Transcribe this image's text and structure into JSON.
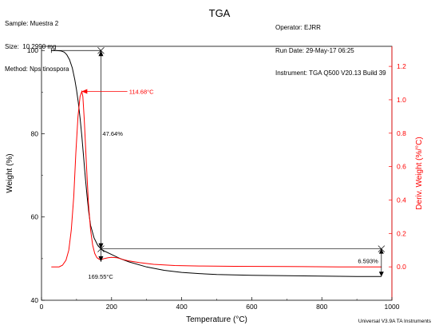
{
  "header": {
    "title": "TGA",
    "left": [
      {
        "label": "Sample:",
        "value": "Muestra 2"
      },
      {
        "label": "Size:",
        "value": "10.2990 mg"
      },
      {
        "label": "Method:",
        "value": "Nps tinospora"
      }
    ],
    "right": [
      {
        "label": "Operator:",
        "value": "EJRR"
      },
      {
        "label": "Run Date:",
        "value": "29-May-17 06:25"
      },
      {
        "label": "Instrument:",
        "value": "TGA Q500 V20.13 Build 39"
      }
    ]
  },
  "footer": "Universal V3.9A TA Instruments",
  "chart_data": {
    "type": "line",
    "title": "TGA",
    "xlabel": "Temperature (°C)",
    "ylabel": "Weight (%)",
    "y2label": "Deriv. Weight (%/°C)",
    "xlim": [
      0,
      1000
    ],
    "ylim": [
      40,
      101
    ],
    "y2lim": [
      -0.2,
      1.32
    ],
    "x_ticks": [
      0,
      200,
      400,
      600,
      800,
      1000
    ],
    "y_ticks": [
      40,
      60,
      80,
      100
    ],
    "y2_ticks": [
      0.0,
      0.2,
      0.4,
      0.6,
      0.8,
      1.0,
      1.2
    ],
    "colors": {
      "weight": "#000000",
      "deriv": "#ff0000"
    },
    "series": [
      {
        "name": "Weight (%)",
        "axis": "left",
        "x": [
          28,
          40,
          55,
          65,
          72,
          80,
          88,
          95,
          100,
          105,
          110,
          115,
          120,
          125,
          130,
          135,
          140,
          150,
          160,
          170,
          180,
          200,
          225,
          250,
          300,
          350,
          400,
          450,
          500,
          600,
          700,
          800,
          900,
          970
        ],
        "y": [
          100,
          100,
          99.9,
          99.6,
          99.0,
          97.8,
          95.8,
          93.0,
          90.5,
          87.5,
          83.8,
          79.5,
          74.5,
          69.5,
          65.0,
          61.0,
          58.0,
          55.0,
          53.3,
          52.3,
          51.8,
          51.0,
          50.0,
          49.2,
          48.0,
          47.2,
          46.7,
          46.4,
          46.2,
          46.0,
          45.9,
          45.8,
          45.7,
          45.7
        ]
      },
      {
        "name": "Deriv. Weight (%/°C)",
        "axis": "right",
        "x": [
          28,
          50,
          60,
          70,
          78,
          85,
          92,
          98,
          104,
          110,
          115,
          118,
          122,
          128,
          134,
          140,
          146,
          152,
          158,
          165,
          172,
          180,
          190,
          200,
          215,
          230,
          250,
          280,
          320,
          380,
          450,
          550,
          700,
          850,
          970
        ],
        "y": [
          0.0,
          0.0,
          0.01,
          0.04,
          0.1,
          0.22,
          0.42,
          0.68,
          0.9,
          1.02,
          1.05,
          1.02,
          0.88,
          0.62,
          0.38,
          0.22,
          0.13,
          0.08,
          0.055,
          0.045,
          0.045,
          0.05,
          0.055,
          0.057,
          0.055,
          0.045,
          0.035,
          0.025,
          0.015,
          0.008,
          0.005,
          0.003,
          0.002,
          0.0,
          0.0
        ]
      }
    ],
    "annotations": {
      "peak_label": "114.68°C",
      "peak_x": 114.68,
      "peak_y2": 1.05,
      "step_label": "47.64%",
      "step_x": 169.55,
      "step_y_top": 100,
      "step_y_bottom": 52.36,
      "onset_label": "169.55°C",
      "residue_label": "6.593%",
      "residue_x": 970,
      "residue_y_top": 52.36,
      "residue_y_bottom": 45.7,
      "start_x": 28
    }
  }
}
